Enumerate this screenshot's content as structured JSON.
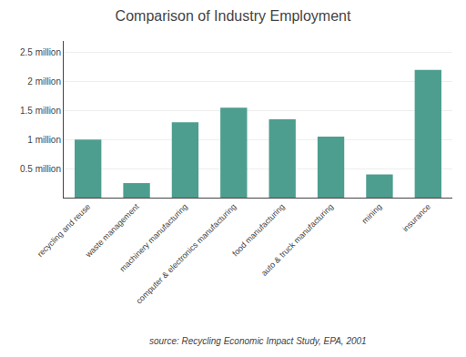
{
  "chart_data": {
    "type": "bar",
    "title": "Comparison of Industry Employment",
    "categories": [
      "recycling and reuse",
      "waste management",
      "machinery manufacturing",
      "computer & electronics manufacturing",
      "food manufacturing",
      "auto & truck manufacturing",
      "mining",
      "insurance"
    ],
    "values": [
      1.0,
      0.25,
      1.3,
      1.55,
      1.35,
      1.05,
      0.4,
      2.2
    ],
    "color": "#4d9e8e",
    "ylim": [
      0,
      2.7
    ],
    "yticks": [
      {
        "value": 0.5,
        "label": "0.5 million"
      },
      {
        "value": 1.0,
        "label": "1 million"
      },
      {
        "value": 1.5,
        "label": "1.5 million"
      },
      {
        "value": 2.0,
        "label": "2 million"
      },
      {
        "value": 2.5,
        "label": "2.5 million"
      }
    ],
    "grid": true,
    "annotations": [
      "source: Recycling Economic Impact Study, EPA, 2001"
    ]
  }
}
